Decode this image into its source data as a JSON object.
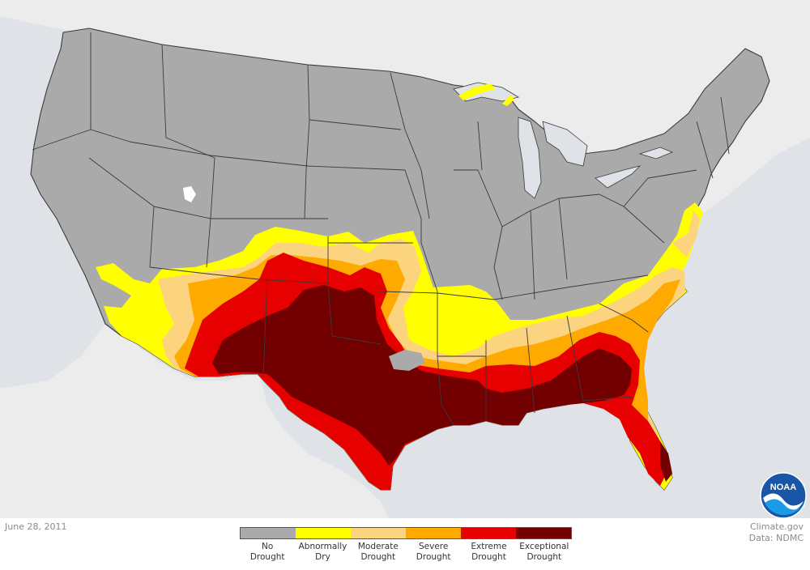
{
  "date": "June 28, 2011",
  "credit": {
    "line1": "Climate.gov",
    "line2": "Data: NDMC"
  },
  "logo_text": "NOAA",
  "legend": [
    {
      "label_line1": "No",
      "label_line2": "Drought",
      "color": "#aaaaaa"
    },
    {
      "label_line1": "Abnormally",
      "label_line2": "Dry",
      "color": "#ffff00"
    },
    {
      "label_line1": "Moderate",
      "label_line2": "Drought",
      "color": "#fcd37f"
    },
    {
      "label_line1": "Severe",
      "label_line2": "Drought",
      "color": "#ffaa00"
    },
    {
      "label_line1": "Extreme",
      "label_line2": "Drought",
      "color": "#e60000"
    },
    {
      "label_line1": "Exceptional",
      "label_line2": "Drought",
      "color": "#730000"
    }
  ],
  "colors": {
    "background": "#dfe3e8",
    "water": "#dfe3e8",
    "land_neighbor": "#ececec",
    "no_drought": "#aaaaaa"
  }
}
